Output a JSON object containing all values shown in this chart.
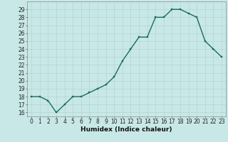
{
  "xlabel": "Humidex (Indice chaleur)",
  "x_values": [
    0,
    1,
    2,
    3,
    4,
    5,
    6,
    7,
    8,
    9,
    10,
    11,
    12,
    13,
    14,
    15,
    16,
    17,
    18,
    19,
    20,
    21,
    22,
    23
  ],
  "y_values": [
    18,
    18,
    17.5,
    16,
    17,
    18,
    18,
    18.5,
    19,
    19.5,
    20.5,
    22.5,
    24,
    25.5,
    25.5,
    28,
    28,
    29,
    29,
    28.5,
    28,
    25,
    24,
    23
  ],
  "line_color": "#1a6b5a",
  "marker_color": "#1a6b5a",
  "bg_color": "#c8e8e8",
  "grid_color": "#b0d0d0",
  "ylim": [
    15.5,
    30
  ],
  "xlim": [
    -0.5,
    23.5
  ],
  "yticks": [
    16,
    17,
    18,
    19,
    20,
    21,
    22,
    23,
    24,
    25,
    26,
    27,
    28,
    29
  ],
  "xticks": [
    0,
    1,
    2,
    3,
    4,
    5,
    6,
    7,
    8,
    9,
    10,
    11,
    12,
    13,
    14,
    15,
    16,
    17,
    18,
    19,
    20,
    21,
    22,
    23
  ],
  "tick_fontsize": 5.5,
  "xlabel_fontsize": 6.5,
  "line_width": 1.0,
  "marker_size": 2.0
}
